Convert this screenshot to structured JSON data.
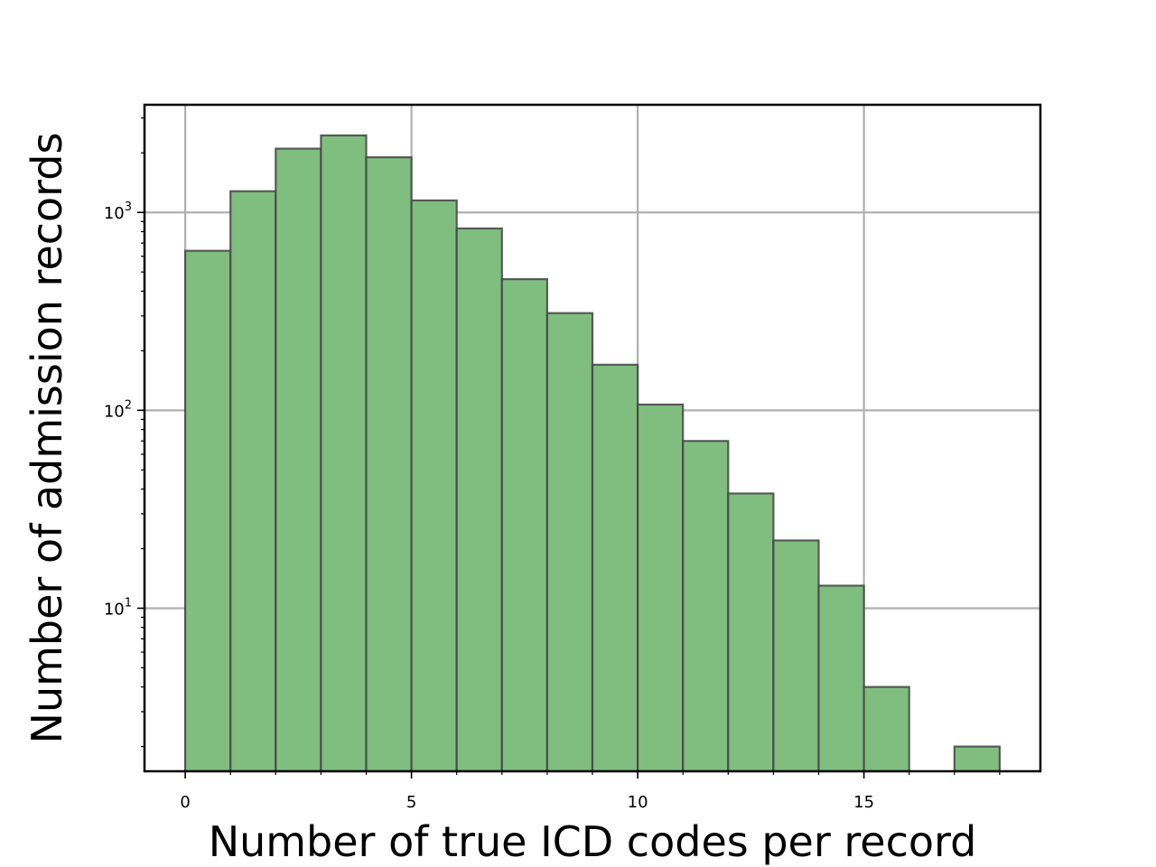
{
  "chart_data": {
    "type": "bar",
    "xlabel": "Number of true ICD codes per record",
    "ylabel": "Number of admission records",
    "x_scale": "linear",
    "y_scale": "log",
    "xlim": [
      -0.9,
      18.9
    ],
    "ylim": [
      1.5,
      3500
    ],
    "grid": true,
    "bar_color": "#80be7f",
    "bar_edge_color": "#444444",
    "bin_width": 1,
    "bins": [
      {
        "x0": 0,
        "x1": 1,
        "count": 640
      },
      {
        "x0": 1,
        "x1": 2,
        "count": 1280
      },
      {
        "x0": 2,
        "x1": 3,
        "count": 2100
      },
      {
        "x0": 3,
        "x1": 4,
        "count": 2450
      },
      {
        "x0": 4,
        "x1": 5,
        "count": 1900
      },
      {
        "x0": 5,
        "x1": 6,
        "count": 1150
      },
      {
        "x0": 6,
        "x1": 7,
        "count": 830
      },
      {
        "x0": 7,
        "x1": 8,
        "count": 460
      },
      {
        "x0": 8,
        "x1": 9,
        "count": 310
      },
      {
        "x0": 9,
        "x1": 10,
        "count": 170
      },
      {
        "x0": 10,
        "x1": 11,
        "count": 107
      },
      {
        "x0": 11,
        "x1": 12,
        "count": 70
      },
      {
        "x0": 12,
        "x1": 13,
        "count": 38
      },
      {
        "x0": 13,
        "x1": 14,
        "count": 22
      },
      {
        "x0": 14,
        "x1": 15,
        "count": 13
      },
      {
        "x0": 15,
        "x1": 16,
        "count": 4
      },
      {
        "x0": 16,
        "x1": 17,
        "count": 0
      },
      {
        "x0": 17,
        "x1": 18,
        "count": 2
      }
    ],
    "x_ticks": [
      {
        "value": 0,
        "label": "0"
      },
      {
        "value": 5,
        "label": "5"
      },
      {
        "value": 10,
        "label": "10"
      },
      {
        "value": 15,
        "label": "15"
      }
    ],
    "y_ticks": [
      {
        "value": 10,
        "base": "10",
        "exp": "1"
      },
      {
        "value": 100,
        "base": "10",
        "exp": "2"
      },
      {
        "value": 1000,
        "base": "10",
        "exp": "3"
      }
    ]
  }
}
